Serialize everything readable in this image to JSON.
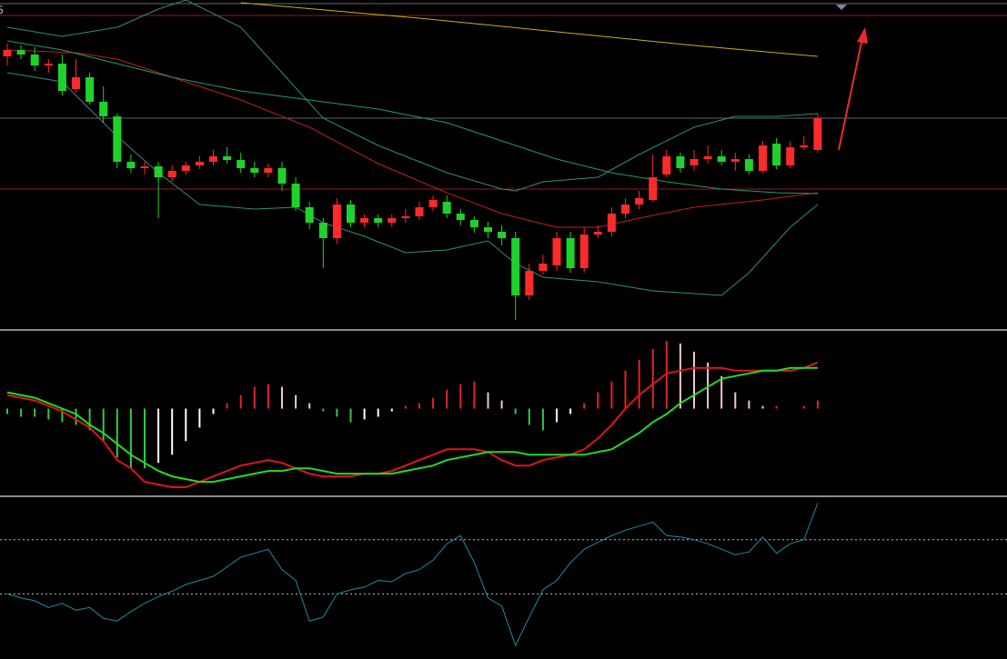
{
  "chart_data": [
    {
      "type": "candlestick",
      "label": "5",
      "ylim": [
        10.0,
        13.6
      ],
      "up_color": "#ff2a2a",
      "down_color": "#1fd22b",
      "open": [
        12.98,
        13.05,
        13.0,
        12.88,
        12.9,
        12.62,
        12.75,
        12.48,
        12.32,
        11.82,
        11.75,
        11.77,
        11.65,
        11.72,
        11.78,
        11.82,
        11.88,
        11.84,
        11.75,
        11.7,
        11.75,
        11.58,
        11.32,
        11.15,
        10.98,
        11.35,
        11.15,
        11.2,
        11.15,
        11.2,
        11.22,
        11.32,
        11.38,
        11.25,
        11.18,
        11.1,
        11.05,
        10.98,
        10.35,
        10.62,
        10.68,
        10.98,
        10.65,
        11.02,
        11.05,
        11.25,
        11.35,
        11.4,
        11.68,
        11.88,
        11.78,
        11.85,
        11.88,
        11.82,
        11.85,
        11.72,
        12.02,
        11.78,
        11.98,
        11.95
      ],
      "close": [
        13.05,
        13.0,
        12.88,
        12.9,
        12.6,
        12.75,
        12.48,
        12.32,
        11.82,
        11.75,
        11.77,
        11.65,
        11.72,
        11.78,
        11.82,
        11.88,
        11.84,
        11.75,
        11.7,
        11.75,
        11.58,
        11.32,
        11.15,
        10.98,
        11.35,
        11.15,
        11.2,
        11.15,
        11.2,
        11.22,
        11.32,
        11.4,
        11.25,
        11.18,
        11.1,
        11.05,
        10.98,
        10.35,
        10.62,
        10.7,
        10.98,
        10.65,
        11.02,
        11.05,
        11.25,
        11.35,
        11.42,
        11.65,
        11.88,
        11.75,
        11.85,
        11.88,
        11.82,
        11.85,
        11.72,
        12.0,
        11.78,
        11.98,
        12.0,
        12.3
      ],
      "high": [
        13.12,
        13.1,
        13.08,
        12.95,
        13.0,
        12.95,
        12.8,
        12.65,
        12.35,
        11.9,
        11.82,
        11.82,
        11.78,
        11.82,
        11.88,
        11.95,
        11.98,
        11.92,
        11.82,
        11.8,
        11.82,
        11.65,
        11.38,
        11.2,
        11.42,
        11.4,
        11.24,
        11.24,
        11.24,
        11.3,
        11.38,
        11.45,
        11.45,
        11.3,
        11.22,
        11.16,
        11.12,
        11.05,
        10.7,
        10.8,
        11.05,
        11.05,
        11.1,
        11.12,
        11.32,
        11.42,
        11.5,
        11.9,
        11.95,
        11.92,
        11.95,
        12.0,
        11.95,
        11.92,
        11.9,
        12.05,
        12.08,
        12.05,
        12.1,
        12.35
      ],
      "low": [
        12.88,
        12.95,
        12.82,
        12.8,
        12.55,
        12.58,
        12.45,
        12.25,
        11.75,
        11.7,
        11.68,
        11.2,
        11.6,
        11.68,
        11.74,
        11.78,
        11.8,
        11.7,
        11.65,
        11.65,
        11.5,
        11.28,
        11.08,
        10.65,
        10.92,
        11.1,
        11.1,
        11.1,
        11.1,
        11.15,
        11.18,
        11.28,
        11.2,
        11.12,
        11.04,
        10.98,
        10.9,
        10.08,
        10.3,
        10.58,
        10.62,
        10.6,
        10.6,
        10.98,
        11.0,
        11.2,
        11.3,
        11.38,
        11.65,
        11.7,
        11.72,
        11.8,
        11.78,
        11.72,
        11.68,
        11.7,
        11.74,
        11.75,
        11.95,
        11.92
      ],
      "lines": [
        {
          "color": "#c8b400",
          "x": [
            17,
            30,
            40,
            50,
            59
          ],
          "values": [
            13.57,
            13.4,
            13.25,
            13.1,
            12.98
          ]
        },
        {
          "color": "#c0201c",
          "x": [
            0,
            5,
            8,
            12,
            17,
            22,
            27,
            32,
            36,
            40,
            43,
            46,
            50,
            55,
            59
          ],
          "values": [
            13.05,
            13.02,
            12.95,
            12.75,
            12.5,
            12.2,
            11.8,
            11.48,
            11.25,
            11.1,
            11.1,
            11.2,
            11.32,
            11.4,
            11.48
          ]
        },
        {
          "color": "#1e9c6e",
          "x": [
            0,
            4,
            8,
            12,
            17,
            22,
            27,
            32,
            36,
            40,
            44,
            48,
            52,
            56,
            59
          ],
          "values": [
            13.15,
            13.05,
            12.9,
            12.75,
            12.6,
            12.5,
            12.4,
            12.25,
            12.05,
            11.85,
            11.7,
            11.6,
            11.52,
            11.48,
            11.47
          ]
        },
        {
          "color": "#2f8f7a",
          "x": [
            0,
            4,
            8,
            11,
            13,
            17,
            20,
            23,
            27,
            32,
            36,
            37,
            39,
            43,
            46,
            50,
            53,
            56,
            59
          ],
          "values": [
            13.3,
            13.2,
            13.3,
            13.5,
            13.6,
            13.3,
            12.8,
            12.3,
            12.0,
            11.7,
            11.52,
            11.5,
            11.6,
            11.65,
            11.9,
            12.2,
            12.32,
            12.32,
            12.35
          ]
        },
        {
          "color": "#2f8f7a",
          "x": [
            0,
            4,
            8,
            11,
            14,
            18,
            21,
            23,
            26,
            29,
            32,
            35,
            37,
            39,
            43,
            47,
            52,
            54,
            57,
            59
          ],
          "values": [
            12.8,
            12.7,
            12.1,
            11.7,
            11.35,
            11.3,
            11.32,
            11.15,
            11.0,
            10.82,
            10.85,
            10.95,
            10.7,
            10.55,
            10.5,
            10.4,
            10.35,
            10.6,
            11.1,
            11.35
          ]
        }
      ],
      "hlines": [
        {
          "value": 13.43,
          "color": "#a01414"
        },
        {
          "value": 12.3,
          "color": "#5a6470"
        },
        {
          "value": 11.52,
          "color": "#a01414"
        }
      ]
    },
    {
      "type": "macd",
      "ylim": [
        -0.32,
        0.28
      ],
      "values": [
        -0.02,
        -0.03,
        -0.03,
        -0.04,
        -0.05,
        -0.06,
        -0.08,
        -0.12,
        -0.18,
        -0.22,
        -0.22,
        -0.2,
        -0.17,
        -0.12,
        -0.07,
        -0.02,
        0.02,
        0.05,
        0.08,
        0.09,
        0.08,
        0.05,
        0.02,
        -0.01,
        -0.03,
        -0.05,
        -0.04,
        -0.03,
        -0.01,
        0.01,
        0.02,
        0.04,
        0.07,
        0.09,
        0.1,
        0.06,
        0.03,
        -0.02,
        -0.06,
        -0.08,
        -0.05,
        -0.02,
        0.02,
        0.06,
        0.1,
        0.14,
        0.18,
        0.22,
        0.25,
        0.24,
        0.21,
        0.17,
        0.12,
        0.06,
        0.03,
        0.01,
        0.01,
        0.0,
        0.01,
        0.03
      ],
      "up_color": "#e0262a",
      "up_fading_color": "#f4c6cb",
      "down_color": "#2ecc40",
      "down_fading_color": "#ffffff",
      "series": [
        {
          "color": "#e0141c",
          "values": [
            0.05,
            0.04,
            0.03,
            0.01,
            -0.01,
            -0.04,
            -0.07,
            -0.12,
            -0.19,
            -0.22,
            -0.27,
            -0.28,
            -0.29,
            -0.29,
            -0.27,
            -0.25,
            -0.23,
            -0.21,
            -0.2,
            -0.19,
            -0.2,
            -0.22,
            -0.24,
            -0.25,
            -0.25,
            -0.25,
            -0.24,
            -0.24,
            -0.23,
            -0.21,
            -0.19,
            -0.17,
            -0.15,
            -0.15,
            -0.15,
            -0.16,
            -0.19,
            -0.21,
            -0.21,
            -0.19,
            -0.18,
            -0.17,
            -0.15,
            -0.11,
            -0.06,
            0.0,
            0.05,
            0.09,
            0.13,
            0.14,
            0.15,
            0.15,
            0.15,
            0.14,
            0.14,
            0.14,
            0.14,
            0.14,
            0.15,
            0.17
          ]
        },
        {
          "color": "#22dd22",
          "values": [
            0.06,
            0.05,
            0.04,
            0.02,
            0.0,
            -0.02,
            -0.06,
            -0.09,
            -0.13,
            -0.17,
            -0.2,
            -0.23,
            -0.25,
            -0.26,
            -0.27,
            -0.27,
            -0.26,
            -0.25,
            -0.24,
            -0.23,
            -0.23,
            -0.22,
            -0.22,
            -0.23,
            -0.24,
            -0.24,
            -0.24,
            -0.24,
            -0.24,
            -0.23,
            -0.22,
            -0.21,
            -0.19,
            -0.18,
            -0.17,
            -0.16,
            -0.16,
            -0.16,
            -0.17,
            -0.17,
            -0.17,
            -0.17,
            -0.17,
            -0.16,
            -0.15,
            -0.12,
            -0.09,
            -0.05,
            -0.02,
            0.02,
            0.05,
            0.08,
            0.11,
            0.12,
            0.13,
            0.14,
            0.14,
            0.15,
            0.15,
            0.15
          ]
        }
      ]
    },
    {
      "type": "line",
      "ylim": [
        -18,
        100
      ],
      "color": "#1d8ea0",
      "levels": [
        70,
        30
      ],
      "values": [
        30,
        27,
        25,
        20,
        23,
        18,
        20,
        12,
        10,
        17,
        23,
        28,
        32,
        37,
        40,
        43,
        50,
        57,
        60,
        63,
        48,
        40,
        10,
        13,
        30,
        33,
        35,
        40,
        39,
        45,
        48,
        55,
        67,
        73,
        53,
        27,
        21,
        -8,
        13,
        33,
        40,
        53,
        63,
        68,
        73,
        77,
        80,
        83,
        73,
        72,
        70,
        67,
        63,
        59,
        61,
        72,
        60,
        67,
        70,
        97
      ]
    }
  ]
}
